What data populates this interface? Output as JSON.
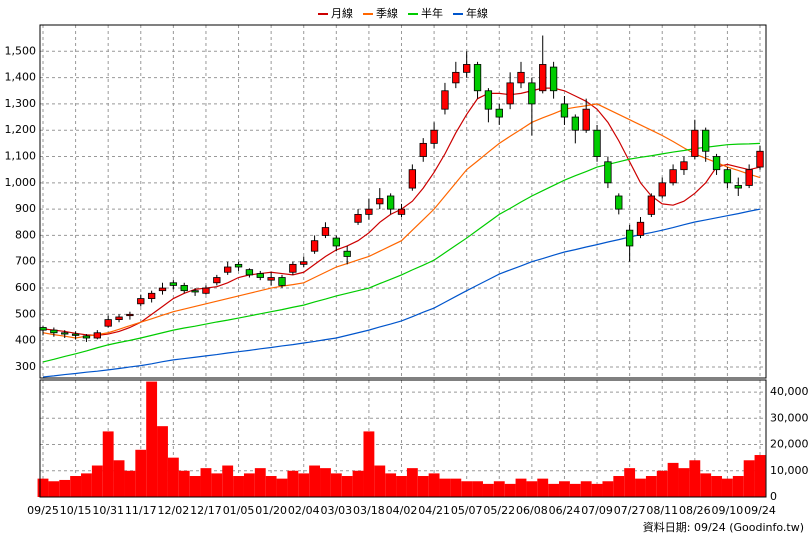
{
  "chart_data": {
    "type": "candlestick",
    "categories": [
      "09/25",
      null,
      null,
      "10/15",
      null,
      null,
      "10/31",
      null,
      null,
      "11/17",
      null,
      null,
      "12/02",
      null,
      null,
      "12/17",
      null,
      null,
      "01/05",
      null,
      null,
      "01/20",
      null,
      null,
      "02/04",
      null,
      null,
      "03/03",
      null,
      null,
      "03/18",
      null,
      null,
      "04/02",
      null,
      null,
      "04/21",
      null,
      null,
      "05/07",
      null,
      null,
      "05/22",
      null,
      null,
      "06/08",
      null,
      null,
      "06/24",
      null,
      null,
      "07/09",
      null,
      null,
      "07/27",
      null,
      null,
      "08/11",
      null,
      null,
      "08/26",
      null,
      null,
      "09/10",
      null,
      null,
      "09/24"
    ],
    "open": [
      450,
      440,
      430,
      425,
      418,
      410,
      455,
      480,
      495,
      540,
      560,
      590,
      620,
      610,
      590,
      580,
      620,
      660,
      690,
      670,
      655,
      630,
      640,
      660,
      690,
      740,
      800,
      790,
      740,
      850,
      880,
      920,
      950,
      880,
      980,
      1100,
      1150,
      1280,
      1380,
      1420,
      1450,
      1350,
      1280,
      1300,
      1380,
      1380,
      1350,
      1440,
      1300,
      1250,
      1200,
      1200,
      1080,
      950,
      820,
      800,
      880,
      950,
      1000,
      1050,
      1100,
      1200,
      1100,
      1050,
      990,
      990,
      1060
    ],
    "high": [
      455,
      450,
      440,
      435,
      425,
      440,
      495,
      500,
      510,
      575,
      590,
      620,
      630,
      620,
      600,
      610,
      650,
      700,
      700,
      675,
      665,
      660,
      650,
      700,
      720,
      800,
      850,
      800,
      760,
      900,
      940,
      980,
      960,
      920,
      1070,
      1170,
      1230,
      1380,
      1460,
      1500,
      1460,
      1360,
      1300,
      1420,
      1460,
      1400,
      1560,
      1460,
      1330,
      1260,
      1320,
      1220,
      1100,
      960,
      840,
      870,
      960,
      1020,
      1070,
      1100,
      1240,
      1210,
      1110,
      1060,
      1020,
      1070,
      1140
    ],
    "low": [
      420,
      415,
      410,
      405,
      395,
      405,
      450,
      470,
      480,
      530,
      545,
      575,
      595,
      580,
      570,
      575,
      610,
      650,
      665,
      640,
      630,
      610,
      600,
      650,
      680,
      730,
      790,
      740,
      690,
      840,
      860,
      900,
      880,
      870,
      970,
      1080,
      1130,
      1260,
      1360,
      1400,
      1320,
      1230,
      1220,
      1280,
      1360,
      1180,
      1340,
      1320,
      1220,
      1150,
      1190,
      1080,
      980,
      880,
      700,
      790,
      870,
      940,
      990,
      1030,
      1090,
      1080,
      1030,
      980,
      950,
      980,
      1050
    ],
    "close": [
      440,
      430,
      425,
      420,
      410,
      430,
      480,
      490,
      500,
      560,
      580,
      600,
      610,
      590,
      585,
      600,
      640,
      680,
      680,
      650,
      640,
      640,
      610,
      690,
      700,
      780,
      830,
      760,
      720,
      880,
      900,
      940,
      900,
      900,
      1050,
      1150,
      1200,
      1350,
      1420,
      1450,
      1350,
      1280,
      1250,
      1380,
      1420,
      1300,
      1450,
      1350,
      1250,
      1200,
      1280,
      1100,
      1000,
      900,
      760,
      850,
      950,
      1000,
      1050,
      1080,
      1200,
      1120,
      1050,
      1000,
      980,
      1050,
      1120
    ],
    "up_color": "#ff0000",
    "down_color": "#00cc00",
    "volume": [
      7000,
      6000,
      6500,
      8000,
      9000,
      12000,
      25000,
      14000,
      10000,
      18000,
      44000,
      27000,
      15000,
      10000,
      8000,
      11000,
      9000,
      12000,
      8000,
      9000,
      11000,
      8000,
      7000,
      10000,
      9000,
      12000,
      11000,
      9000,
      8000,
      10000,
      25000,
      12000,
      9000,
      8000,
      11000,
      8000,
      9000,
      7000,
      7000,
      6000,
      6000,
      5000,
      6000,
      5000,
      7000,
      6000,
      7000,
      5000,
      6000,
      5000,
      6000,
      5000,
      6000,
      8000,
      11000,
      7000,
      8000,
      10000,
      13000,
      11000,
      14000,
      9000,
      8000,
      7000,
      8000,
      14000,
      16000
    ],
    "volume_color": "#ff0000",
    "series": [
      {
        "name": "月線",
        "color": "#cc0000",
        "values": [
          445,
          440,
          435,
          428,
          422,
          420,
          425,
          435,
          450,
          470,
          500,
          530,
          560,
          580,
          595,
          600,
          605,
          620,
          640,
          650,
          655,
          660,
          655,
          650,
          660,
          690,
          720,
          745,
          760,
          780,
          810,
          850,
          880,
          900,
          930,
          980,
          1040,
          1110,
          1190,
          1260,
          1320,
          1340,
          1340,
          1335,
          1340,
          1350,
          1360,
          1360,
          1350,
          1330,
          1310,
          1280,
          1230,
          1160,
          1080,
          1000,
          950,
          920,
          915,
          930,
          960,
          1000,
          1060,
          1070,
          1060,
          1050,
          1060
        ]
      },
      {
        "name": "季線",
        "color": "#ff6600",
        "values": [
          430,
          423,
          417,
          410,
          417,
          423,
          430,
          443,
          457,
          470,
          483,
          497,
          510,
          520,
          530,
          540,
          550,
          560,
          570,
          580,
          590,
          600,
          607,
          613,
          620,
          640,
          660,
          680,
          693,
          707,
          720,
          740,
          760,
          780,
          820,
          860,
          900,
          950,
          1000,
          1050,
          1083,
          1117,
          1150,
          1177,
          1203,
          1230,
          1247,
          1263,
          1280,
          1287,
          1293,
          1300,
          1280,
          1260,
          1240,
          1220,
          1200,
          1180,
          1157,
          1133,
          1110,
          1093,
          1077,
          1060,
          1047,
          1033,
          1020
        ]
      },
      {
        "name": "半年",
        "color": "#00cc00",
        "values": [
          319,
          329,
          340,
          350,
          361,
          373,
          384,
          393,
          401,
          410,
          420,
          430,
          440,
          448,
          455,
          463,
          471,
          478,
          486,
          494,
          502,
          510,
          518,
          527,
          535,
          547,
          558,
          570,
          580,
          590,
          600,
          617,
          633,
          650,
          669,
          687,
          706,
          734,
          762,
          790,
          820,
          850,
          880,
          903,
          927,
          950,
          970,
          990,
          1010,
          1027,
          1043,
          1060,
          1070,
          1080,
          1090,
          1097,
          1103,
          1110,
          1117,
          1123,
          1130,
          1135,
          1140,
          1145,
          1147,
          1148,
          1150
        ]
      },
      {
        "name": "年線",
        "color": "#0055cc",
        "values": [
          262,
          266,
          271,
          275,
          280,
          284,
          289,
          294,
          300,
          305,
          312,
          320,
          327,
          332,
          337,
          342,
          347,
          353,
          358,
          363,
          369,
          374,
          380,
          385,
          391,
          397,
          404,
          410,
          420,
          430,
          440,
          452,
          463,
          475,
          491,
          508,
          524,
          546,
          568,
          590,
          611,
          632,
          653,
          669,
          684,
          700,
          712,
          725,
          737,
          746,
          756,
          765,
          775,
          784,
          794,
          803,
          811,
          820,
          830,
          841,
          851,
          859,
          867,
          875,
          883,
          892,
          900
        ]
      }
    ],
    "ylim": [
      258,
      1600
    ],
    "yticks": [
      300,
      400,
      500,
      600,
      700,
      800,
      900,
      {
        "value": 1000,
        "label": "1,000"
      },
      {
        "value": 1100,
        "label": "1,100"
      },
      {
        "value": 1200,
        "label": "1,200"
      },
      {
        "value": 1300,
        "label": "1,300"
      },
      {
        "value": 1400,
        "label": "1,400"
      },
      {
        "value": 1500,
        "label": "1,500"
      }
    ],
    "volume_ylim": [
      0,
      44600
    ],
    "volume_yticks": [
      0,
      {
        "value": 10000,
        "label": "10,000"
      },
      {
        "value": 20000,
        "label": "20,000"
      },
      {
        "value": 30000,
        "label": "30,000"
      },
      {
        "value": 40000,
        "label": "40,000"
      }
    ],
    "grid": true,
    "footer": "資料日期: 09/24 (Goodinfo.tw)"
  }
}
